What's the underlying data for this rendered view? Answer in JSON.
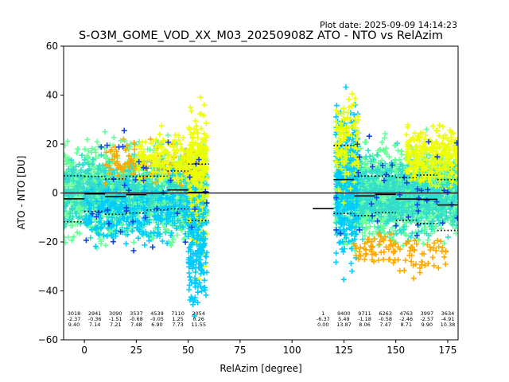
{
  "chart_data": {
    "type": "scatter",
    "plot_date": "Plot date: 2025-09-09 14:14:23",
    "title": "S-O3M_GOME_VOD_XX_M03_20250908Z ATO - NTO vs RelAzim",
    "xlabel": "RelAzim [degree]",
    "ylabel": "ATO - NTO [DU]",
    "xlim": [
      -10,
      180
    ],
    "ylim": [
      -60,
      60
    ],
    "xticks": [
      0,
      25,
      50,
      75,
      100,
      125,
      150,
      175
    ],
    "yticks": [
      -60,
      -40,
      -20,
      0,
      20,
      40,
      60
    ],
    "zero_line": 0,
    "bins": [
      {
        "x0": -10,
        "x1": 0,
        "label_x": -5,
        "count": "3018",
        "mean": "-2.37",
        "std": "9.40",
        "mean_v": -2.37,
        "std_v": 9.4
      },
      {
        "x0": 0,
        "x1": 10,
        "label_x": 5,
        "count": "2941",
        "mean": "-0.36",
        "std": "7.14",
        "mean_v": -0.36,
        "std_v": 7.14
      },
      {
        "x0": 10,
        "x1": 20,
        "label_x": 15,
        "count": "3090",
        "mean": "-1.51",
        "std": "7.21",
        "mean_v": -1.51,
        "std_v": 7.21
      },
      {
        "x0": 20,
        "x1": 30,
        "label_x": 25,
        "count": "3537",
        "mean": "-0.68",
        "std": "7.48",
        "mean_v": -0.68,
        "std_v": 7.48
      },
      {
        "x0": 30,
        "x1": 40,
        "label_x": 35,
        "count": "4539",
        "mean": "-0.05",
        "std": "6.90",
        "mean_v": -0.05,
        "std_v": 6.9
      },
      {
        "x0": 40,
        "x1": 50,
        "label_x": 45,
        "count": "7110",
        "mean": "1.25",
        "std": "7.73",
        "mean_v": 1.25,
        "std_v": 7.73
      },
      {
        "x0": 50,
        "x1": 60,
        "label_x": 55,
        "count": "2054",
        "mean": "0.26",
        "std": "11.55",
        "mean_v": 0.26,
        "std_v": 11.55
      },
      {
        "x0": 110,
        "x1": 120,
        "label_x": 115,
        "count": "1",
        "mean": "-6.37",
        "std": "0.00",
        "mean_v": -6.37,
        "std_v": 0.0
      },
      {
        "x0": 120,
        "x1": 130,
        "label_x": 125,
        "count": "9400",
        "mean": "5.49",
        "std": "13.87",
        "mean_v": 5.49,
        "std_v": 13.87
      },
      {
        "x0": 130,
        "x1": 140,
        "label_x": 135,
        "count": "9711",
        "mean": "-1.18",
        "std": "8.06",
        "mean_v": -1.18,
        "std_v": 8.06
      },
      {
        "x0": 140,
        "x1": 150,
        "label_x": 145,
        "count": "6263",
        "mean": "-0.58",
        "std": "7.47",
        "mean_v": -0.58,
        "std_v": 7.47
      },
      {
        "x0": 150,
        "x1": 160,
        "label_x": 155,
        "count": "4763",
        "mean": "-2.46",
        "std": "8.71",
        "mean_v": -2.46,
        "std_v": 8.71
      },
      {
        "x0": 160,
        "x1": 170,
        "label_x": 165,
        "count": "3997",
        "mean": "-2.57",
        "std": "9.90",
        "mean_v": -2.57,
        "std_v": 9.9
      },
      {
        "x0": 170,
        "x1": 180,
        "label_x": 175,
        "count": "3634",
        "mean": "-4.91",
        "std": "10.38",
        "mean_v": -4.91,
        "std_v": 10.38
      }
    ],
    "scatter_clusters": [
      {
        "x0": -10,
        "x1": 59,
        "center": 0,
        "spread": 17,
        "color": "#66ff99",
        "n": 1400
      },
      {
        "x0": -10,
        "x1": 59,
        "center": 0,
        "spread": 14,
        "color": "#33ddcc",
        "n": 700
      },
      {
        "x0": 0,
        "x1": 59,
        "center": -8,
        "spread": 12,
        "color": "#00ccff",
        "n": 300
      },
      {
        "x0": 10,
        "x1": 57,
        "center": 12,
        "spread": 8,
        "color": "#ffaa00",
        "n": 120
      },
      {
        "x0": 25,
        "x1": 59,
        "center": 14,
        "spread": 9,
        "color": "#eeff00",
        "n": 220
      },
      {
        "x0": 50,
        "x1": 59,
        "center": 5,
        "spread": 30,
        "color": "#eeff00",
        "n": 200
      },
      {
        "x0": 50,
        "x1": 59,
        "center": -25,
        "spread": 22,
        "color": "#00ccff",
        "n": 160
      },
      {
        "x0": 0,
        "x1": 59,
        "center": 0,
        "spread": 22,
        "color": "#1144dd",
        "n": 40
      },
      {
        "x0": 121,
        "x1": 180,
        "center": 0,
        "spread": 17,
        "color": "#66ff99",
        "n": 1500
      },
      {
        "x0": 121,
        "x1": 180,
        "center": 0,
        "spread": 15,
        "color": "#33ddcc",
        "n": 800
      },
      {
        "x0": 121,
        "x1": 132,
        "center": 5,
        "spread": 28,
        "color": "#00ccff",
        "n": 300
      },
      {
        "x0": 121,
        "x1": 132,
        "center": 20,
        "spread": 22,
        "color": "#eeff00",
        "n": 120
      },
      {
        "x0": 130,
        "x1": 150,
        "center": -22,
        "spread": 6,
        "color": "#ffaa00",
        "n": 60
      },
      {
        "x0": 155,
        "x1": 180,
        "center": 15,
        "spread": 12,
        "color": "#eeff00",
        "n": 280
      },
      {
        "x0": 150,
        "x1": 175,
        "center": -25,
        "spread": 8,
        "color": "#ffaa00",
        "n": 50
      },
      {
        "x0": 121,
        "x1": 180,
        "center": 0,
        "spread": 24,
        "color": "#1144dd",
        "n": 40
      }
    ],
    "grid": false,
    "legend": "none"
  }
}
